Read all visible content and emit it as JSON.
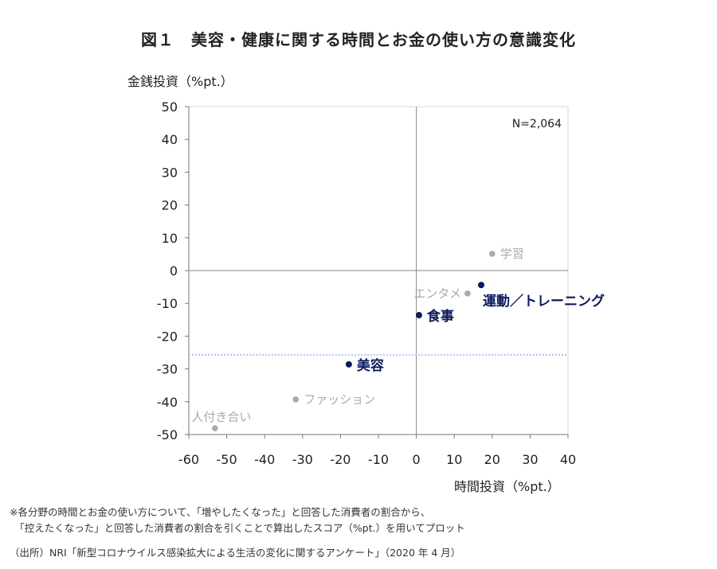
{
  "chart_data": {
    "type": "scatter",
    "title": "図１　美容・健康に関する時間とお金の使い方の意識変化",
    "xlabel": "時間投資（%pt.）",
    "ylabel": "金銭投資（%pt.）",
    "xlim": [
      -60,
      40
    ],
    "ylim": [
      -50,
      50
    ],
    "xticks": [
      -60,
      -50,
      -40,
      -30,
      -20,
      -10,
      0,
      10,
      20,
      30,
      40
    ],
    "yticks": [
      50,
      40,
      30,
      20,
      10,
      0,
      -10,
      -20,
      -30,
      -40,
      -50
    ],
    "grid": false,
    "annotation": "N=2,064",
    "reference_line_y": -25.7,
    "colors": {
      "highlight": "#0d1a5e",
      "muted": "#aaaaaa",
      "reference": "#b8c4e8"
    },
    "points": [
      {
        "label": "学習",
        "x": 20.0,
        "y": 5.1,
        "highlight": false,
        "label_side": "right"
      },
      {
        "label": "運動／トレーニング",
        "x": 17.1,
        "y": -4.4,
        "highlight": true,
        "label_side": "below-right"
      },
      {
        "label": "エンタメ",
        "x": 13.5,
        "y": -7.0,
        "highlight": false,
        "label_side": "left"
      },
      {
        "label": "食事",
        "x": 0.7,
        "y": -13.6,
        "highlight": true,
        "label_side": "right"
      },
      {
        "label": "美容",
        "x": -17.8,
        "y": -28.6,
        "highlight": true,
        "label_side": "right"
      },
      {
        "label": "ファッション",
        "x": -31.8,
        "y": -39.3,
        "highlight": false,
        "label_side": "right"
      },
      {
        "label": "人付き合い",
        "x": -53.1,
        "y": -48.1,
        "highlight": false,
        "label_side": "above"
      }
    ]
  },
  "notes": {
    "line1": "※各分野の時間とお金の使い方について、「増やしたくなった」と回答した消費者の割合から、",
    "line2": "　「控えたくなった」と回答した消費者の割合を引くことで算出したスコア（%pt.）を用いてプロット",
    "source": "（出所）NRI「新型コロナウイルス感染拡大による生活の変化に関するアンケート」（2020 年 4 月）"
  }
}
